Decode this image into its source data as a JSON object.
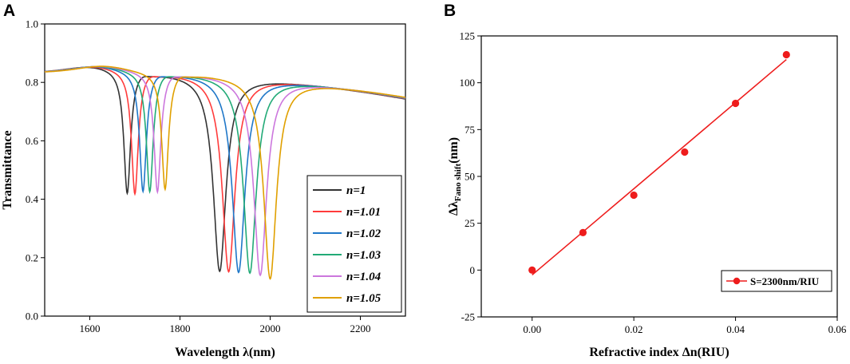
{
  "panels": {
    "a_label": "A",
    "b_label": "B"
  },
  "chart_data": [
    {
      "type": "line",
      "title": "",
      "xlabel": "Wavelength λ(nm)",
      "ylabel": "Transmittance",
      "xlim": [
        1500,
        2300
      ],
      "ylim": [
        0.0,
        1.0
      ],
      "x_ticks": [
        "1600",
        "1800",
        "2000",
        "2200"
      ],
      "y_ticks": [
        "0.0",
        "0.2",
        "0.4",
        "0.6",
        "0.8",
        "1.0"
      ],
      "legend_position": "lower-right",
      "series": [
        {
          "name": "n=1",
          "color": "#333333",
          "baseline": 0.84,
          "peak_x": 1605,
          "dip1_x": 1683,
          "dip1_min": 0.42,
          "dip2_x": 1888,
          "dip2_min": 0.17
        },
        {
          "name": "n=1.01",
          "color": "#ff3b3b",
          "baseline": 0.84,
          "peak_x": 1610,
          "dip1_x": 1700,
          "dip1_min": 0.42,
          "dip2_x": 1908,
          "dip2_min": 0.17
        },
        {
          "name": "n=1.02",
          "color": "#1f77c8",
          "baseline": 0.84,
          "peak_x": 1615,
          "dip1_x": 1718,
          "dip1_min": 0.43,
          "dip2_x": 1930,
          "dip2_min": 0.17
        },
        {
          "name": "n=1.03",
          "color": "#22aa77",
          "baseline": 0.84,
          "peak_x": 1620,
          "dip1_x": 1733,
          "dip1_min": 0.43,
          "dip2_x": 1955,
          "dip2_min": 0.17
        },
        {
          "name": "n=1.04",
          "color": "#cc77dd",
          "baseline": 0.84,
          "peak_x": 1625,
          "dip1_x": 1750,
          "dip1_min": 0.43,
          "dip2_x": 1978,
          "dip2_min": 0.165
        },
        {
          "name": "n=1.05",
          "color": "#e0a000",
          "baseline": 0.84,
          "peak_x": 1630,
          "dip1_x": 1767,
          "dip1_min": 0.44,
          "dip2_x": 2000,
          "dip2_min": 0.155
        }
      ]
    },
    {
      "type": "scatter",
      "title": "",
      "xlabel": "Refractive index Δn(RIU)",
      "ylabel_main": "Δλ",
      "ylabel_sub": "Fano shift",
      "ylabel_tail": "(nm)",
      "xlim": [
        -0.01,
        0.06
      ],
      "ylim": [
        -25,
        125
      ],
      "x_ticks": [
        "0.00",
        "0.02",
        "0.04",
        "0.06"
      ],
      "y_ticks": [
        "-25",
        "0",
        "25",
        "50",
        "75",
        "100",
        "125"
      ],
      "legend_position": "lower-right",
      "color": "#ee1c1c",
      "points": {
        "x": [
          0.0,
          0.01,
          0.02,
          0.03,
          0.04,
          0.05
        ],
        "y": [
          0,
          20,
          40,
          63,
          89,
          115
        ]
      },
      "fit": {
        "x": [
          0.0,
          0.05
        ],
        "y": [
          -2.6,
          112.4
        ]
      },
      "legend_label": "S=2300nm/RIU"
    }
  ]
}
